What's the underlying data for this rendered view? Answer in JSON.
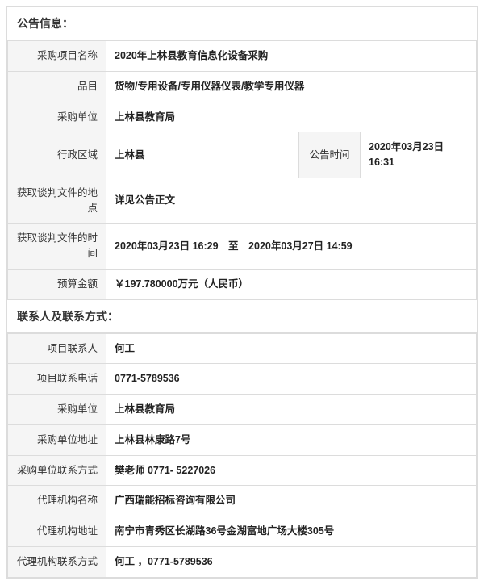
{
  "section1": {
    "title": "公告信息：",
    "rows": {
      "project_name_label": "采购项目名称",
      "project_name": "2020年上林县教育信息化设备采购",
      "category_label": "品目",
      "category": "货物/专用设备/专用仪器仪表/教学专用仪器",
      "buyer_label": "采购单位",
      "buyer": "上林县教育局",
      "region_label": "行政区域",
      "region": "上林县",
      "announce_time_label": "公告时间",
      "announce_time": "2020年03月23日 16:31",
      "doc_place_label": "获取谈判文件的地点",
      "doc_place": "详见公告正文",
      "doc_time_label": "获取谈判文件的时间",
      "doc_time": "2020年03月23日 16:29　至　2020年03月27日 14:59",
      "budget_label": "预算金额",
      "budget": "￥197.780000万元（人民币）"
    }
  },
  "section2": {
    "title": "联系人及联系方式：",
    "rows": {
      "proj_contact_label": "项目联系人",
      "proj_contact": "何工",
      "proj_phone_label": "项目联系电话",
      "proj_phone": "0771-5789536",
      "buyer2_label": "采购单位",
      "buyer2": "上林县教育局",
      "buyer_addr_label": "采购单位地址",
      "buyer_addr": "上林县林康路7号",
      "buyer_contact_label": "采购单位联系方式",
      "buyer_contact": "樊老师 0771- 5227026",
      "agency_name_label": "代理机构名称",
      "agency_name": "广西瑞能招标咨询有限公司",
      "agency_addr_label": "代理机构地址",
      "agency_addr": "南宁市青秀区长湖路36号金湖富地广场大楼305号",
      "agency_contact_label": "代理机构联系方式",
      "agency_contact": "何工 ，0771-5789536"
    }
  }
}
